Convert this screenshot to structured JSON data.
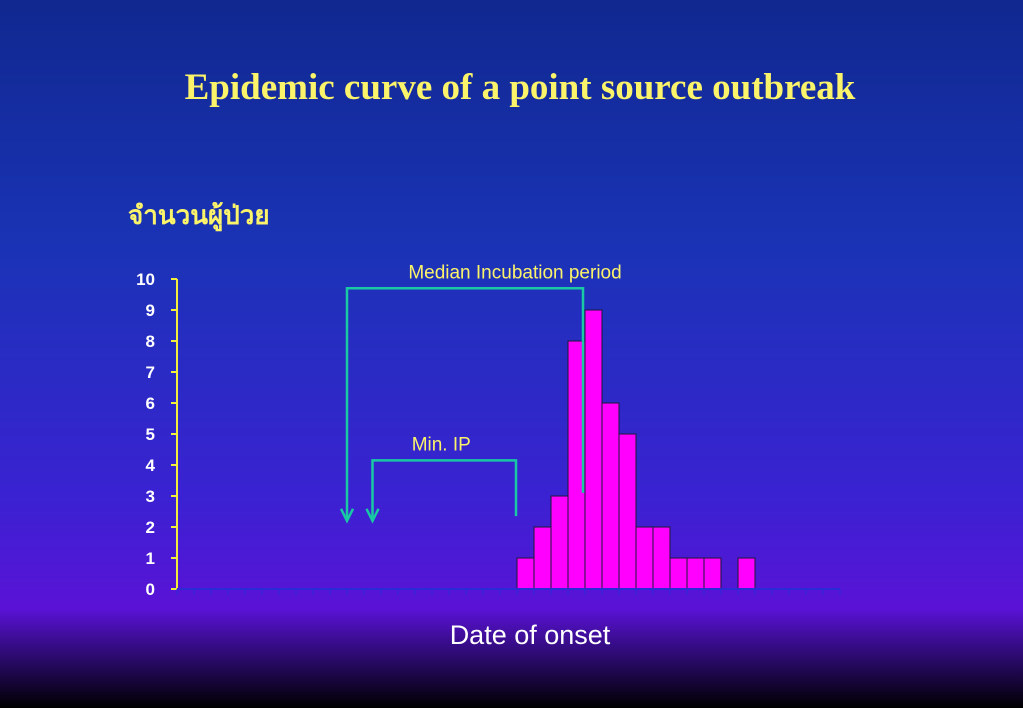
{
  "slide": {
    "title": "Epidemic curve of a point source outbreak"
  },
  "chart_data": {
    "type": "bar",
    "title": "Epidemic curve of a point source outbreak",
    "ylabel": "จำนวนผู้ป่วย",
    "xlabel": "Date of onset",
    "ylim": [
      0,
      10
    ],
    "yticks": [
      "0",
      "1",
      "2",
      "3",
      "4",
      "5",
      "6",
      "7",
      "8",
      "9",
      "10"
    ],
    "values": [
      0,
      0,
      0,
      0,
      0,
      0,
      0,
      0,
      0,
      0,
      0,
      0,
      0,
      0,
      0,
      0,
      0,
      0,
      0,
      0,
      1,
      2,
      3,
      8,
      9,
      6,
      5,
      2,
      2,
      1,
      1,
      1,
      0,
      1,
      0,
      0,
      0,
      0,
      0
    ],
    "grid": false,
    "colors": {
      "bar": "#ff00ff",
      "axis": "#f2ee3a",
      "annotation": "#19c9a4",
      "annotation_text": "#fbf36a",
      "ticklabel": "#ffffff"
    },
    "annotations": [
      {
        "text": "Median Incubation period",
        "from_bar": 10,
        "to_bar": 24
      },
      {
        "text": "Min. IP",
        "from_bar": 11.5,
        "to_bar": 20
      }
    ]
  }
}
